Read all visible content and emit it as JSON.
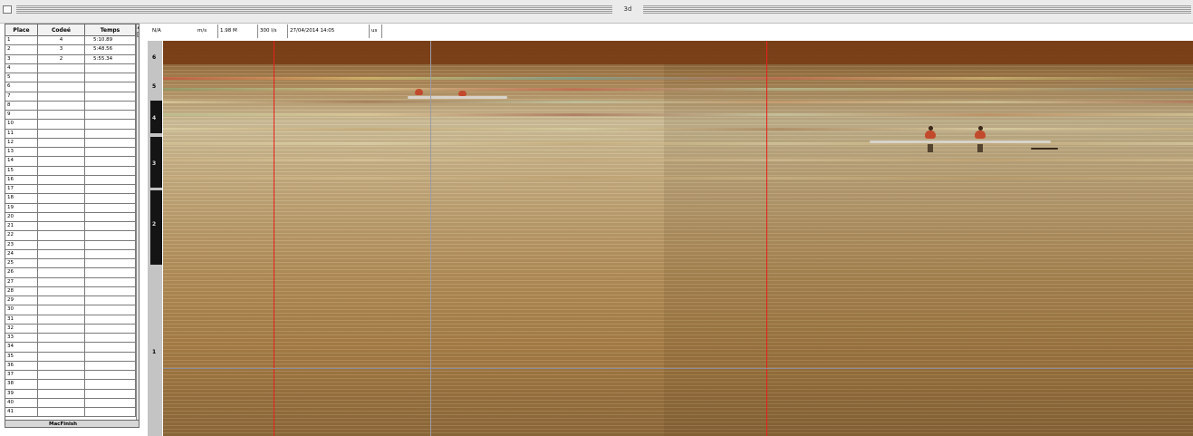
{
  "window": {
    "title": "3d"
  },
  "results_table": {
    "columns": [
      "Place",
      "Codeé",
      "Temps"
    ],
    "rows": [
      {
        "place": "1",
        "code": "4",
        "time": "5:10.89"
      },
      {
        "place": "2",
        "code": "3",
        "time": "5:48.56"
      },
      {
        "place": "3",
        "code": "2",
        "time": "5:55.34"
      },
      {
        "place": "4",
        "code": "",
        "time": ""
      },
      {
        "place": "5",
        "code": "",
        "time": ""
      },
      {
        "place": "6",
        "code": "",
        "time": ""
      },
      {
        "place": "7",
        "code": "",
        "time": ""
      },
      {
        "place": "8",
        "code": "",
        "time": ""
      },
      {
        "place": "9",
        "code": "",
        "time": ""
      },
      {
        "place": "10",
        "code": "",
        "time": ""
      },
      {
        "place": "11",
        "code": "",
        "time": ""
      },
      {
        "place": "12",
        "code": "",
        "time": ""
      },
      {
        "place": "13",
        "code": "",
        "time": ""
      },
      {
        "place": "14",
        "code": "",
        "time": ""
      },
      {
        "place": "15",
        "code": "",
        "time": ""
      },
      {
        "place": "16",
        "code": "",
        "time": ""
      },
      {
        "place": "17",
        "code": "",
        "time": ""
      },
      {
        "place": "18",
        "code": "",
        "time": ""
      },
      {
        "place": "19",
        "code": "",
        "time": ""
      },
      {
        "place": "20",
        "code": "",
        "time": ""
      },
      {
        "place": "21",
        "code": "",
        "time": ""
      },
      {
        "place": "22",
        "code": "",
        "time": ""
      },
      {
        "place": "23",
        "code": "",
        "time": ""
      },
      {
        "place": "24",
        "code": "",
        "time": ""
      },
      {
        "place": "25",
        "code": "",
        "time": ""
      },
      {
        "place": "26",
        "code": "",
        "time": ""
      },
      {
        "place": "27",
        "code": "",
        "time": ""
      },
      {
        "place": "28",
        "code": "",
        "time": ""
      },
      {
        "place": "29",
        "code": "",
        "time": ""
      },
      {
        "place": "30",
        "code": "",
        "time": ""
      },
      {
        "place": "31",
        "code": "",
        "time": ""
      },
      {
        "place": "32",
        "code": "",
        "time": ""
      },
      {
        "place": "33",
        "code": "",
        "time": ""
      },
      {
        "place": "34",
        "code": "",
        "time": ""
      },
      {
        "place": "35",
        "code": "",
        "time": ""
      },
      {
        "place": "36",
        "code": "",
        "time": ""
      },
      {
        "place": "37",
        "code": "",
        "time": ""
      },
      {
        "place": "38",
        "code": "",
        "time": ""
      },
      {
        "place": "39",
        "code": "",
        "time": ""
      },
      {
        "place": "40",
        "code": "",
        "time": ""
      },
      {
        "place": "41",
        "code": "",
        "time": ""
      }
    ],
    "footer_label": "MacFinish"
  },
  "status_bar": {
    "speed": "N/A",
    "speed_unit": "m/s",
    "distance": "1.98 M",
    "frame_rate": "300 l/s",
    "datetime": "27/04/2014 14:05",
    "extra": "us"
  },
  "lane_ruler": {
    "labels": [
      "6",
      "5",
      "4",
      "3",
      "2",
      "1"
    ]
  },
  "colors": {
    "red_cursor": "#e8201a",
    "grey_cursor": "#9a9aa6",
    "rower_suit": "#c24a2c"
  }
}
